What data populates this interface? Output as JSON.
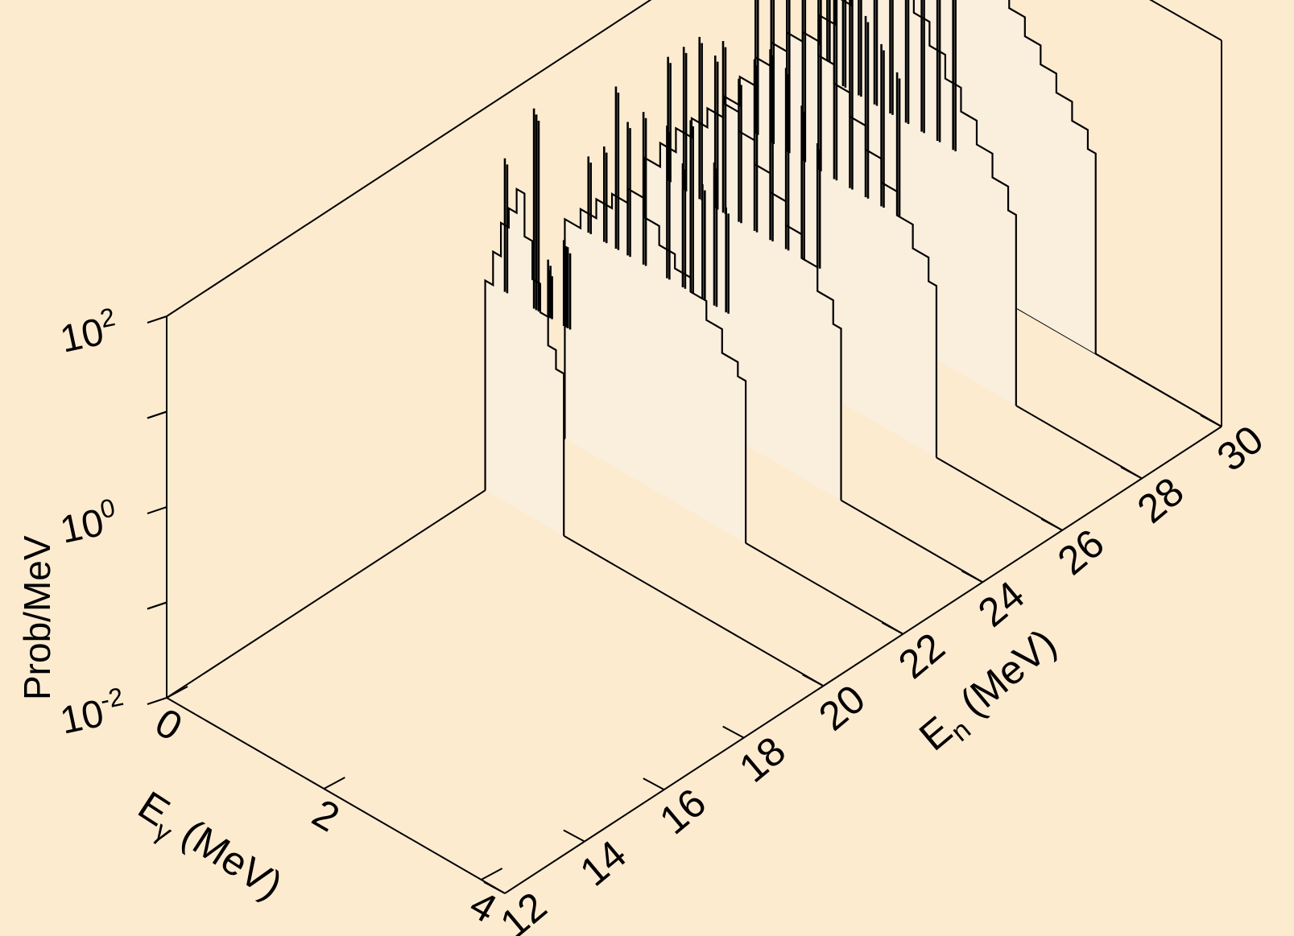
{
  "chart_data": {
    "type": "3d-waterfall-histogram",
    "title": "",
    "xlabel": "Eγ (MeV)",
    "xlabel_main": "E",
    "xlabel_sub": "γ",
    "xlabel_rest": " (MeV)",
    "ylabel": "En (MeV)",
    "ylabel_main": "E",
    "ylabel_sub": "n",
    "ylabel_rest": " (MeV)",
    "zlabel": "Prob/MeV",
    "z_scale": "log",
    "x_range": [
      0,
      4.3
    ],
    "y_range": [
      12,
      30
    ],
    "z_range_log10": [
      -2,
      2
    ],
    "x_ticks": [
      {
        "value": 0,
        "label": "0"
      },
      {
        "value": 2,
        "label": "2"
      },
      {
        "value": 4,
        "label": "4"
      }
    ],
    "y_ticks": [
      {
        "value": 12,
        "label": "12"
      },
      {
        "value": 14,
        "label": "14"
      },
      {
        "value": 16,
        "label": "16"
      },
      {
        "value": 18,
        "label": "18"
      },
      {
        "value": 20,
        "label": "20"
      },
      {
        "value": 22,
        "label": "22"
      },
      {
        "value": 24,
        "label": "24"
      },
      {
        "value": 26,
        "label": "26"
      },
      {
        "value": 28,
        "label": "28"
      },
      {
        "value": 30,
        "label": "30"
      }
    ],
    "z_ticks": [
      {
        "log10": -2,
        "base": "10",
        "exp": "-2"
      },
      {
        "log10": 0,
        "base": "10",
        "exp": "0"
      },
      {
        "log10": 2,
        "base": "10",
        "exp": "2"
      }
    ],
    "series": [
      {
        "En": 20,
        "continuum": [
          [
            0,
            0.2
          ],
          [
            0.1,
            0.55
          ],
          [
            0.2,
            0.9
          ],
          [
            0.3,
            1.1
          ],
          [
            0.4,
            1.35
          ],
          [
            0.5,
            0.9
          ],
          [
            0.6,
            0.5
          ],
          [
            0.7,
            0.2
          ],
          [
            0.8,
            -0.1
          ],
          [
            0.9,
            -0.3
          ]
        ],
        "lines": [
          [
            0.25,
            1.6
          ],
          [
            0.62,
            2.3
          ],
          [
            0.65,
            2.25
          ],
          [
            0.8,
            0.8
          ],
          [
            0.82,
            0.7
          ],
          [
            1.0,
            1.1
          ],
          [
            1.05,
            1.05
          ]
        ]
      },
      {
        "En": 22,
        "continuum": [
          [
            0,
            0.3
          ],
          [
            0.2,
            0.5
          ],
          [
            0.4,
            0.7
          ],
          [
            0.6,
            0.85
          ],
          [
            0.8,
            1.0
          ],
          [
            1.0,
            0.8
          ],
          [
            1.2,
            0.6
          ],
          [
            1.4,
            0.45
          ],
          [
            1.6,
            0.3
          ],
          [
            1.8,
            0.1
          ],
          [
            2.0,
            -0.15
          ],
          [
            2.2,
            -0.3
          ]
        ],
        "lines": [
          [
            0.3,
            1.1
          ],
          [
            0.5,
            1.3
          ],
          [
            0.65,
            2.0
          ],
          [
            0.8,
            1.7
          ],
          [
            1.0,
            1.9
          ],
          [
            1.3,
            1.9
          ],
          [
            1.5,
            1.6
          ],
          [
            1.6,
            2.1
          ],
          [
            1.75,
            1.5
          ],
          [
            1.9,
            1.8
          ],
          [
            2.05,
            1.4
          ]
        ]
      },
      {
        "En": 24,
        "continuum": [
          [
            0,
            0.4
          ],
          [
            0.2,
            0.65
          ],
          [
            0.4,
            0.9
          ],
          [
            0.6,
            1.1
          ],
          [
            0.8,
            1.3
          ],
          [
            1.0,
            1.45
          ],
          [
            1.2,
            1.25
          ],
          [
            1.4,
            1.0
          ],
          [
            1.6,
            0.8
          ],
          [
            1.8,
            0.55
          ],
          [
            2.0,
            0.3
          ],
          [
            2.2,
            0.05
          ],
          [
            2.4,
            -0.2
          ]
        ],
        "lines": [
          [
            0.3,
            1.6
          ],
          [
            0.5,
            1.8
          ],
          [
            0.7,
            2.0
          ],
          [
            0.9,
            1.9
          ],
          [
            1.0,
            2.1
          ],
          [
            1.2,
            1.8
          ],
          [
            1.4,
            2.1
          ],
          [
            1.6,
            2.3
          ],
          [
            1.8,
            2.2
          ],
          [
            2.0,
            1.9
          ],
          [
            2.2,
            1.6
          ]
        ]
      },
      {
        "En": 26,
        "continuum": [
          [
            0,
            0.5
          ],
          [
            0.2,
            0.8
          ],
          [
            0.4,
            1.1
          ],
          [
            0.6,
            1.35
          ],
          [
            0.8,
            1.55
          ],
          [
            1.0,
            1.65
          ],
          [
            1.2,
            1.5
          ],
          [
            1.4,
            1.3
          ],
          [
            1.6,
            1.05
          ],
          [
            1.8,
            0.8
          ],
          [
            2.0,
            0.55
          ],
          [
            2.2,
            0.3
          ],
          [
            2.4,
            0.05
          ],
          [
            2.6,
            -0.2
          ]
        ],
        "lines": [
          [
            0.4,
            2.0
          ],
          [
            0.6,
            2.2
          ],
          [
            0.8,
            2.4
          ],
          [
            1.0,
            2.3
          ],
          [
            1.2,
            2.5
          ],
          [
            1.4,
            2.3
          ],
          [
            1.6,
            2.4
          ],
          [
            1.8,
            2.2
          ],
          [
            2.0,
            2.0
          ],
          [
            2.2,
            1.8
          ]
        ]
      },
      {
        "En": 28,
        "continuum": [
          [
            0,
            0.6
          ],
          [
            0.2,
            0.9
          ],
          [
            0.4,
            1.2
          ],
          [
            0.6,
            1.45
          ],
          [
            0.8,
            1.65
          ],
          [
            1.0,
            1.75
          ],
          [
            1.2,
            1.7
          ],
          [
            1.4,
            1.5
          ],
          [
            1.6,
            1.25
          ],
          [
            1.8,
            1.0
          ],
          [
            2.0,
            0.75
          ],
          [
            2.2,
            0.5
          ],
          [
            2.4,
            0.25
          ],
          [
            2.6,
            0.0
          ]
        ],
        "lines": [
          [
            0.3,
            2.3
          ],
          [
            0.5,
            2.5
          ],
          [
            0.7,
            2.6
          ],
          [
            0.9,
            2.4
          ],
          [
            1.1,
            2.6
          ],
          [
            1.3,
            2.2
          ],
          [
            1.5,
            2.3
          ],
          [
            1.7,
            2.1
          ],
          [
            1.9,
            2.0
          ]
        ]
      },
      {
        "En": 30,
        "continuum": [
          [
            0,
            0.9
          ],
          [
            0.2,
            1.1
          ],
          [
            0.4,
            1.3
          ],
          [
            0.6,
            1.45
          ],
          [
            0.8,
            1.6
          ],
          [
            1.0,
            1.65
          ],
          [
            1.2,
            1.5
          ],
          [
            1.4,
            1.3
          ],
          [
            1.6,
            1.1
          ],
          [
            1.8,
            0.9
          ],
          [
            2.0,
            0.7
          ],
          [
            2.2,
            0.5
          ],
          [
            2.4,
            0.3
          ],
          [
            2.6,
            0.1
          ]
        ],
        "lines": []
      }
    ]
  }
}
